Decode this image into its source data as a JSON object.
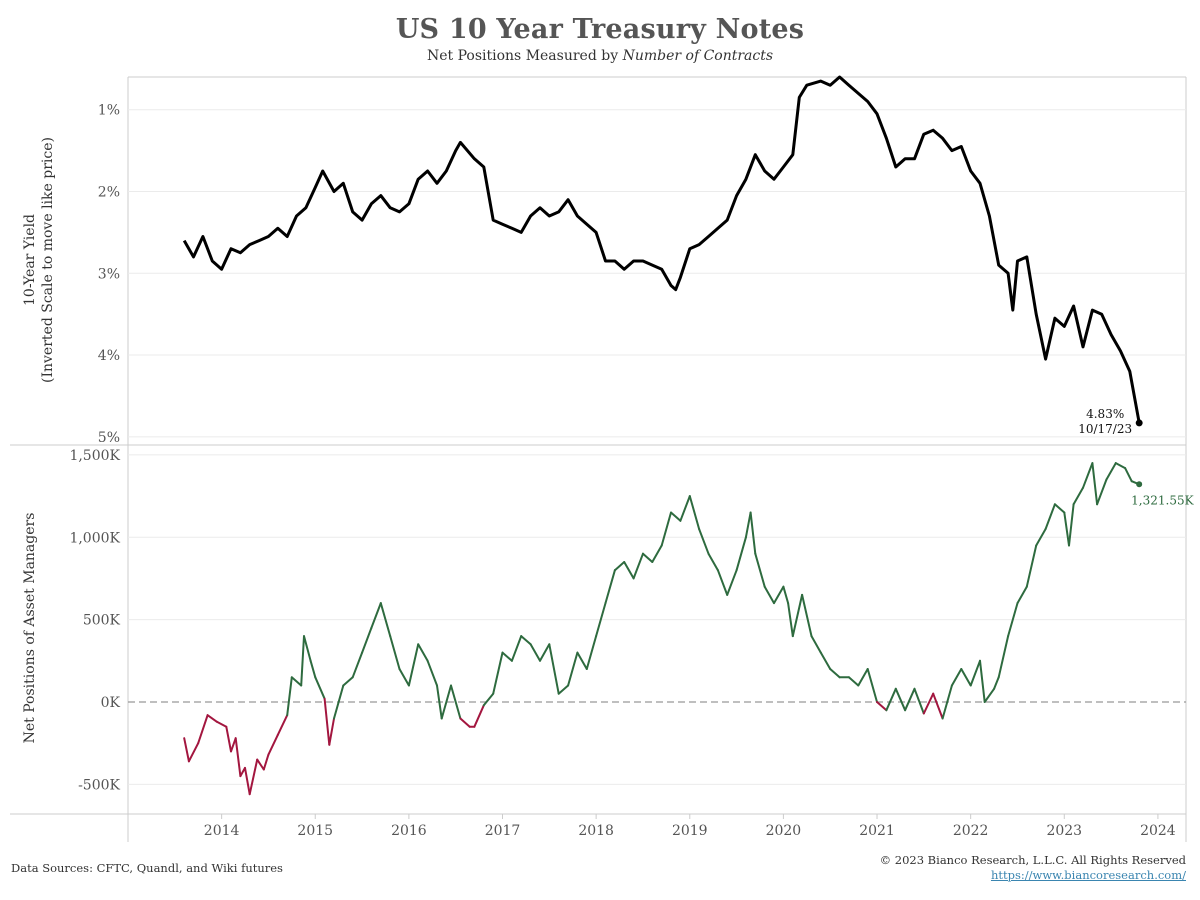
{
  "header": {
    "title": "US 10 Year Treasury Notes",
    "subtitle_prefix": "Net Positions Measured by ",
    "subtitle_emphasis": "Number of Contracts"
  },
  "footer": {
    "sources": "Data Sources: CFTC, Quandl, and Wiki futures",
    "copyright": "© 2023 Bianco Research, L.L.C. All Rights Reserved",
    "link": "https://www.biancoresearch.com/"
  },
  "colors": {
    "yield_line": "#000000",
    "positive": "#2e6b3f",
    "negative": "#a3163f",
    "zero_line": "#999999",
    "grid": "#ebebeb"
  },
  "chart_data": [
    {
      "type": "line",
      "ylabel": "10-Year Yield",
      "ylabel_sub": "(Inverted Scale to move like price)",
      "inverted": true,
      "ylim": [
        0.6,
        5.1
      ],
      "yticks": [
        1,
        2,
        3,
        4,
        5
      ],
      "ytick_labels": [
        "1%",
        "2%",
        "3%",
        "4%",
        "5%"
      ],
      "annotation": {
        "value_label": "4.83%",
        "date_label": "10/17/23",
        "x": 2023.8,
        "y": 4.83
      },
      "series": [
        {
          "points": [
            [
              2013.6,
              2.6
            ],
            [
              2013.7,
              2.8
            ],
            [
              2013.8,
              2.55
            ],
            [
              2013.9,
              2.85
            ],
            [
              2014.0,
              2.95
            ],
            [
              2014.1,
              2.7
            ],
            [
              2014.2,
              2.75
            ],
            [
              2014.3,
              2.65
            ],
            [
              2014.4,
              2.6
            ],
            [
              2014.5,
              2.55
            ],
            [
              2014.6,
              2.45
            ],
            [
              2014.7,
              2.55
            ],
            [
              2014.8,
              2.3
            ],
            [
              2014.9,
              2.2
            ],
            [
              2015.0,
              1.95
            ],
            [
              2015.08,
              1.75
            ],
            [
              2015.2,
              2.0
            ],
            [
              2015.3,
              1.9
            ],
            [
              2015.4,
              2.25
            ],
            [
              2015.5,
              2.35
            ],
            [
              2015.6,
              2.15
            ],
            [
              2015.7,
              2.05
            ],
            [
              2015.8,
              2.2
            ],
            [
              2015.9,
              2.25
            ],
            [
              2016.0,
              2.15
            ],
            [
              2016.1,
              1.85
            ],
            [
              2016.2,
              1.75
            ],
            [
              2016.3,
              1.9
            ],
            [
              2016.4,
              1.75
            ],
            [
              2016.5,
              1.5
            ],
            [
              2016.55,
              1.4
            ],
            [
              2016.7,
              1.6
            ],
            [
              2016.8,
              1.7
            ],
            [
              2016.9,
              2.35
            ],
            [
              2017.0,
              2.4
            ],
            [
              2017.1,
              2.45
            ],
            [
              2017.2,
              2.5
            ],
            [
              2017.3,
              2.3
            ],
            [
              2017.4,
              2.2
            ],
            [
              2017.5,
              2.3
            ],
            [
              2017.6,
              2.25
            ],
            [
              2017.7,
              2.1
            ],
            [
              2017.8,
              2.3
            ],
            [
              2017.9,
              2.4
            ],
            [
              2018.0,
              2.5
            ],
            [
              2018.1,
              2.85
            ],
            [
              2018.2,
              2.85
            ],
            [
              2018.3,
              2.95
            ],
            [
              2018.4,
              2.85
            ],
            [
              2018.5,
              2.85
            ],
            [
              2018.6,
              2.9
            ],
            [
              2018.7,
              2.95
            ],
            [
              2018.8,
              3.15
            ],
            [
              2018.85,
              3.2
            ],
            [
              2018.9,
              3.05
            ],
            [
              2019.0,
              2.7
            ],
            [
              2019.1,
              2.65
            ],
            [
              2019.2,
              2.55
            ],
            [
              2019.3,
              2.45
            ],
            [
              2019.4,
              2.35
            ],
            [
              2019.5,
              2.05
            ],
            [
              2019.6,
              1.85
            ],
            [
              2019.7,
              1.55
            ],
            [
              2019.8,
              1.75
            ],
            [
              2019.9,
              1.85
            ],
            [
              2020.0,
              1.7
            ],
            [
              2020.1,
              1.55
            ],
            [
              2020.17,
              0.85
            ],
            [
              2020.25,
              0.7
            ],
            [
              2020.4,
              0.65
            ],
            [
              2020.5,
              0.7
            ],
            [
              2020.6,
              0.6
            ],
            [
              2020.7,
              0.7
            ],
            [
              2020.8,
              0.8
            ],
            [
              2020.9,
              0.9
            ],
            [
              2021.0,
              1.05
            ],
            [
              2021.1,
              1.35
            ],
            [
              2021.2,
              1.7
            ],
            [
              2021.3,
              1.6
            ],
            [
              2021.4,
              1.6
            ],
            [
              2021.5,
              1.3
            ],
            [
              2021.6,
              1.25
            ],
            [
              2021.7,
              1.35
            ],
            [
              2021.8,
              1.5
            ],
            [
              2021.9,
              1.45
            ],
            [
              2022.0,
              1.75
            ],
            [
              2022.1,
              1.9
            ],
            [
              2022.2,
              2.3
            ],
            [
              2022.3,
              2.9
            ],
            [
              2022.4,
              3.0
            ],
            [
              2022.45,
              3.45
            ],
            [
              2022.5,
              2.85
            ],
            [
              2022.6,
              2.8
            ],
            [
              2022.7,
              3.5
            ],
            [
              2022.8,
              4.05
            ],
            [
              2022.9,
              3.55
            ],
            [
              2023.0,
              3.65
            ],
            [
              2023.1,
              3.4
            ],
            [
              2023.2,
              3.9
            ],
            [
              2023.3,
              3.45
            ],
            [
              2023.4,
              3.5
            ],
            [
              2023.5,
              3.75
            ],
            [
              2023.6,
              3.95
            ],
            [
              2023.7,
              4.2
            ],
            [
              2023.8,
              4.83
            ]
          ]
        }
      ]
    },
    {
      "type": "line",
      "ylabel": "Net Positions of Asset Managers",
      "ylim": [
        -680,
        1560
      ],
      "yticks": [
        -500,
        0,
        500,
        1000,
        1500
      ],
      "ytick_labels": [
        "-500K",
        "0K",
        "500K",
        "1,000K",
        "1,500K"
      ],
      "xticks": [
        2014,
        2015,
        2016,
        2017,
        2018,
        2019,
        2020,
        2021,
        2022,
        2023,
        2024
      ],
      "xtick_labels": [
        "2014",
        "2015",
        "2016",
        "2017",
        "2018",
        "2019",
        "2020",
        "2021",
        "2022",
        "2023",
        "2024"
      ],
      "xlim": [
        2013,
        2024.3
      ],
      "reference_line": 0,
      "annotation": {
        "value_label": "1,321.55K",
        "x": 2023.8,
        "y": 1321.55
      },
      "series": [
        {
          "points": [
            [
              2013.6,
              -220
            ],
            [
              2013.65,
              -360
            ],
            [
              2013.75,
              -250
            ],
            [
              2013.85,
              -80
            ],
            [
              2013.95,
              -120
            ],
            [
              2014.05,
              -150
            ],
            [
              2014.1,
              -300
            ],
            [
              2014.15,
              -220
            ],
            [
              2014.2,
              -450
            ],
            [
              2014.25,
              -400
            ],
            [
              2014.3,
              -560
            ],
            [
              2014.38,
              -350
            ],
            [
              2014.45,
              -410
            ],
            [
              2014.5,
              -320
            ],
            [
              2014.6,
              -200
            ],
            [
              2014.7,
              -80
            ],
            [
              2014.75,
              150
            ],
            [
              2014.85,
              100
            ],
            [
              2014.88,
              400
            ],
            [
              2014.95,
              250
            ],
            [
              2015.0,
              150
            ],
            [
              2015.1,
              20
            ],
            [
              2015.15,
              -260
            ],
            [
              2015.2,
              -100
            ],
            [
              2015.3,
              100
            ],
            [
              2015.4,
              150
            ],
            [
              2015.5,
              300
            ],
            [
              2015.6,
              450
            ],
            [
              2015.7,
              600
            ],
            [
              2015.8,
              400
            ],
            [
              2015.9,
              200
            ],
            [
              2016.0,
              100
            ],
            [
              2016.1,
              350
            ],
            [
              2016.2,
              250
            ],
            [
              2016.3,
              100
            ],
            [
              2016.35,
              -100
            ],
            [
              2016.45,
              100
            ],
            [
              2016.55,
              -100
            ],
            [
              2016.65,
              -150
            ],
            [
              2016.7,
              -150
            ],
            [
              2016.8,
              -20
            ],
            [
              2016.9,
              50
            ],
            [
              2017.0,
              300
            ],
            [
              2017.1,
              250
            ],
            [
              2017.2,
              400
            ],
            [
              2017.3,
              350
            ],
            [
              2017.4,
              250
            ],
            [
              2017.5,
              350
            ],
            [
              2017.6,
              50
            ],
            [
              2017.7,
              100
            ],
            [
              2017.8,
              300
            ],
            [
              2017.9,
              200
            ],
            [
              2018.0,
              400
            ],
            [
              2018.1,
              600
            ],
            [
              2018.2,
              800
            ],
            [
              2018.3,
              850
            ],
            [
              2018.4,
              750
            ],
            [
              2018.5,
              900
            ],
            [
              2018.6,
              850
            ],
            [
              2018.7,
              950
            ],
            [
              2018.8,
              1150
            ],
            [
              2018.9,
              1100
            ],
            [
              2019.0,
              1250
            ],
            [
              2019.1,
              1050
            ],
            [
              2019.2,
              900
            ],
            [
              2019.3,
              800
            ],
            [
              2019.4,
              650
            ],
            [
              2019.5,
              800
            ],
            [
              2019.6,
              1000
            ],
            [
              2019.65,
              1150
            ],
            [
              2019.7,
              900
            ],
            [
              2019.8,
              700
            ],
            [
              2019.9,
              600
            ],
            [
              2020.0,
              700
            ],
            [
              2020.05,
              600
            ],
            [
              2020.1,
              400
            ],
            [
              2020.2,
              650
            ],
            [
              2020.3,
              400
            ],
            [
              2020.4,
              300
            ],
            [
              2020.5,
              200
            ],
            [
              2020.6,
              150
            ],
            [
              2020.7,
              150
            ],
            [
              2020.8,
              100
            ],
            [
              2020.9,
              200
            ],
            [
              2021.0,
              0
            ],
            [
              2021.1,
              -50
            ],
            [
              2021.2,
              80
            ],
            [
              2021.3,
              -50
            ],
            [
              2021.4,
              80
            ],
            [
              2021.5,
              -70
            ],
            [
              2021.6,
              50
            ],
            [
              2021.7,
              -100
            ],
            [
              2021.8,
              100
            ],
            [
              2021.9,
              200
            ],
            [
              2022.0,
              100
            ],
            [
              2022.1,
              250
            ],
            [
              2022.15,
              0
            ],
            [
              2022.25,
              80
            ],
            [
              2022.3,
              150
            ],
            [
              2022.4,
              400
            ],
            [
              2022.5,
              600
            ],
            [
              2022.6,
              700
            ],
            [
              2022.7,
              950
            ],
            [
              2022.8,
              1050
            ],
            [
              2022.9,
              1200
            ],
            [
              2023.0,
              1150
            ],
            [
              2023.05,
              950
            ],
            [
              2023.1,
              1200
            ],
            [
              2023.2,
              1300
            ],
            [
              2023.3,
              1450
            ],
            [
              2023.35,
              1200
            ],
            [
              2023.45,
              1350
            ],
            [
              2023.55,
              1450
            ],
            [
              2023.65,
              1420
            ],
            [
              2023.72,
              1340
            ],
            [
              2023.8,
              1321.55
            ]
          ]
        }
      ]
    }
  ]
}
